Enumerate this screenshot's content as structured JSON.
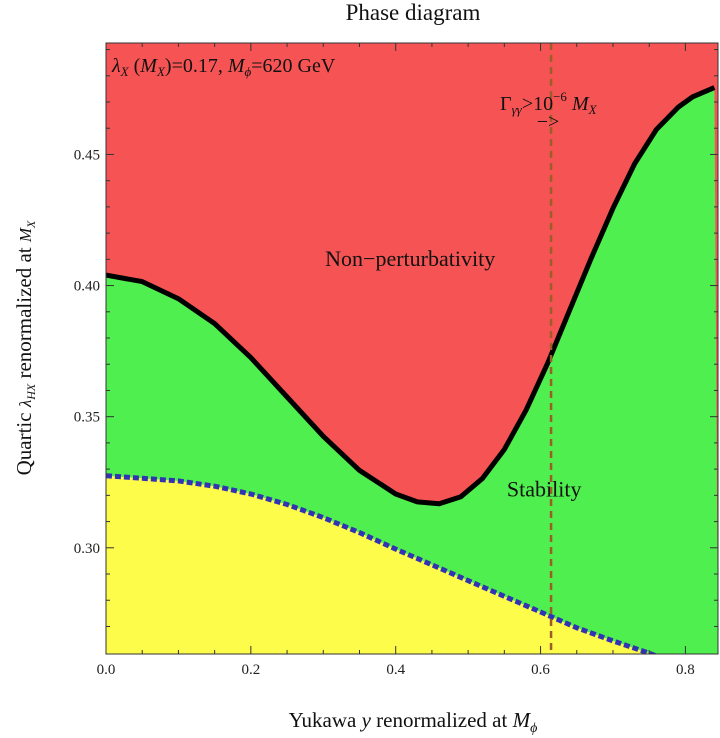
{
  "chart_data": {
    "type": "area",
    "title": "Phase diagram",
    "xlabel": {
      "prefix": "Yukawa ",
      "var": "y",
      "middle": " renormalized at ",
      "M": "M",
      "sub": "ϕ"
    },
    "ylabel": {
      "prefix": "Quartic ",
      "lam": "λ",
      "lamsub": "HX",
      "middle": " renormalized at ",
      "M": "M",
      "sub": "X"
    },
    "xlim": [
      0.0,
      0.845
    ],
    "ylim": [
      0.2595,
      0.4925
    ],
    "x_ticks": [
      "0.0",
      "0.2",
      "0.4",
      "0.6",
      "0.8"
    ],
    "x_tick_values": [
      0.0,
      0.2,
      0.4,
      0.6,
      0.8
    ],
    "y_ticks": [
      "0.30",
      "0.35",
      "0.40",
      "0.45"
    ],
    "y_tick_values": [
      0.3,
      0.35,
      0.4,
      0.45
    ],
    "params_annotation": {
      "lam": "λ",
      "lamsub": "X",
      "arg": " (",
      "argM": "M",
      "argsub": "X",
      "mid": ")=0.17, ",
      "M2": "M",
      "M2sub": "ϕ",
      "rest": "=620 GeV"
    },
    "width_annotation": {
      "gamma": "Γ",
      "gsub": "γγ",
      "gt": ">10",
      "exp": "−6",
      "M": " M",
      "Msub": "X",
      "arrow": "−>"
    },
    "regions": [
      {
        "name": "Non−perturbativity",
        "color": "#f65454",
        "label_at": [
          0.42,
          0.4075
        ]
      },
      {
        "name": "Stability",
        "color": "#4fef4f",
        "label_at": [
          0.605,
          0.3195
        ]
      },
      {
        "name": "",
        "color": "#fdfc4b"
      }
    ],
    "series": [
      {
        "role": "perturbativity-boundary",
        "color": "#000000",
        "style": "solid",
        "x": [
          0.0,
          0.05,
          0.1,
          0.15,
          0.2,
          0.25,
          0.3,
          0.35,
          0.4,
          0.43,
          0.46,
          0.49,
          0.52,
          0.55,
          0.58,
          0.61,
          0.64,
          0.67,
          0.7,
          0.73,
          0.76,
          0.79,
          0.81,
          0.84
        ],
        "y": [
          0.404,
          0.4015,
          0.395,
          0.3855,
          0.3725,
          0.3575,
          0.3425,
          0.3295,
          0.3205,
          0.3175,
          0.3168,
          0.3195,
          0.3265,
          0.3375,
          0.3525,
          0.3705,
          0.3905,
          0.4105,
          0.4295,
          0.4465,
          0.4595,
          0.468,
          0.472,
          0.4755
        ]
      },
      {
        "role": "stability-boundary",
        "color": "#3232b4",
        "style": "dashed",
        "x": [
          0.0,
          0.05,
          0.1,
          0.15,
          0.2,
          0.25,
          0.3,
          0.35,
          0.4,
          0.45,
          0.5,
          0.55,
          0.6,
          0.65,
          0.7,
          0.75,
          0.78,
          0.8
        ],
        "y": [
          0.3275,
          0.3265,
          0.3255,
          0.3235,
          0.3205,
          0.3165,
          0.3115,
          0.3058,
          0.2995,
          0.2935,
          0.2875,
          0.2815,
          0.2755,
          0.2695,
          0.2645,
          0.2598,
          0.2565,
          0.2545
        ]
      },
      {
        "role": "diphoton-width-threshold",
        "color": "#9e5c28",
        "style": "dashed",
        "x": [
          0.6145,
          0.6145
        ],
        "y": [
          0.2595,
          0.4925
        ]
      }
    ],
    "grid": false,
    "legend": "none"
  }
}
